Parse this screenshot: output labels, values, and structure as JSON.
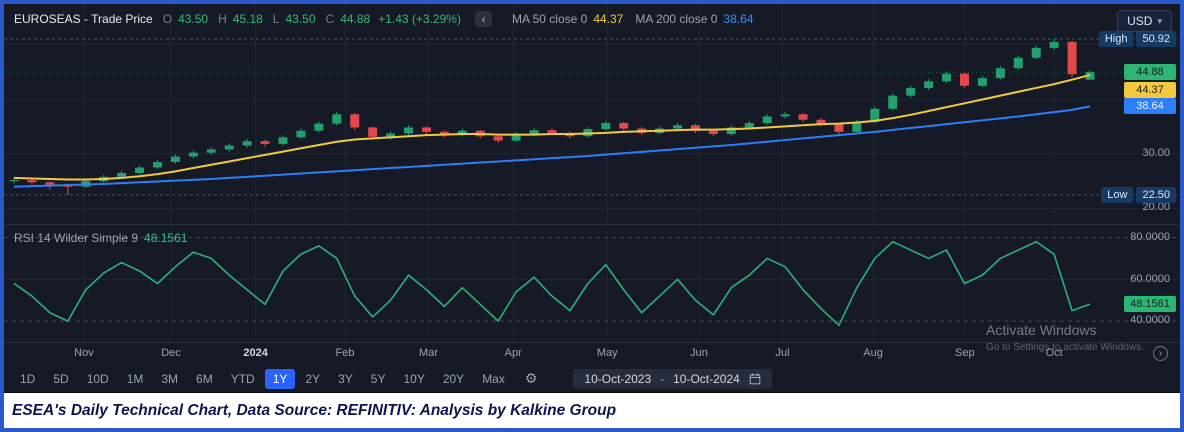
{
  "header": {
    "symbol_title": "EUROSEAS - Trade Price",
    "ohlc": {
      "o_label": "O",
      "o": "43.50",
      "h_label": "H",
      "h": "45.18",
      "l_label": "L",
      "l": "43.50",
      "c_label": "C",
      "c": "44.88",
      "change": "+1.43 (+3.29%)"
    },
    "ma50": {
      "label": "MA 50 close 0",
      "value": "44.37"
    },
    "ma200": {
      "label": "MA 200 close 0",
      "value": "38.64"
    },
    "currency": "USD"
  },
  "icons": {
    "legend_collapse": "‹",
    "caret_down": "▾",
    "gear": "⚙",
    "jump_latest": "›"
  },
  "price_axis": {
    "high_label": "High",
    "high_value": "50.92",
    "last_value": "44.88",
    "ma50_value": "44.37",
    "ma200_value": "38.64",
    "grid_labels": [
      "30.00",
      "20.00"
    ],
    "low_label": "Low",
    "low_value": "22.50"
  },
  "rsi": {
    "legend": "RSI 14 Wilder Simple 9",
    "value": "48.1561",
    "axis_labels": [
      "80.0000",
      "60.0000",
      "40.0000"
    ],
    "badge_value": "48.1561"
  },
  "time_axis": {
    "labels": [
      {
        "text": "Nov",
        "pos": 0.068
      },
      {
        "text": "Dec",
        "pos": 0.142
      },
      {
        "text": "2024",
        "pos": 0.214,
        "year": true
      },
      {
        "text": "Feb",
        "pos": 0.29
      },
      {
        "text": "Mar",
        "pos": 0.361
      },
      {
        "text": "Apr",
        "pos": 0.433
      },
      {
        "text": "May",
        "pos": 0.513
      },
      {
        "text": "Jun",
        "pos": 0.591
      },
      {
        "text": "Jul",
        "pos": 0.662
      },
      {
        "text": "Aug",
        "pos": 0.739
      },
      {
        "text": "Sep",
        "pos": 0.817
      },
      {
        "text": "Oct",
        "pos": 0.893
      }
    ]
  },
  "toolbar": {
    "ranges": [
      "1D",
      "5D",
      "10D",
      "1M",
      "3M",
      "6M",
      "YTD",
      "1Y",
      "2Y",
      "3Y",
      "5Y",
      "10Y",
      "20Y",
      "Max"
    ],
    "active_range": "1Y",
    "date_from": "10-Oct-2023",
    "date_separator": "-",
    "date_to": "10-Oct-2024"
  },
  "watermark": {
    "line1": "Activate Windows",
    "line2": "Go to Settings to activate Windows."
  },
  "caption": "ESEA's Daily Technical Chart, Data Source: REFINITIV: Analysis by Kalkine Group",
  "chart_data": [
    {
      "type": "candlestick",
      "title": "EUROSEAS - Trade Price, 1Y daily (values sampled ~weekly from chart)",
      "x_range": [
        "10-Oct-2023",
        "10-Oct-2024"
      ],
      "ylim": [
        17.2,
        57.3
      ],
      "axis_ticks": [
        {
          "value": 30,
          "label": "30.00"
        },
        {
          "value": 20,
          "label": "20.00"
        }
      ],
      "markers": {
        "high": 50.92,
        "low": 22.5,
        "last": 44.88
      },
      "colors": {
        "up": "#23a06d",
        "down": "#e4484f"
      },
      "ohlc": [
        [
          25.0,
          25.6,
          24.6,
          25.2
        ],
        [
          25.2,
          25.5,
          24.4,
          24.8
        ],
        [
          24.8,
          25.0,
          23.4,
          24.3
        ],
        [
          24.3,
          24.6,
          22.5,
          24.0
        ],
        [
          24.0,
          25.3,
          23.8,
          25.0
        ],
        [
          25.0,
          26.2,
          24.7,
          25.8
        ],
        [
          25.8,
          26.9,
          25.5,
          26.5
        ],
        [
          26.5,
          27.9,
          26.2,
          27.5
        ],
        [
          27.5,
          28.9,
          27.2,
          28.5
        ],
        [
          28.5,
          29.9,
          28.2,
          29.5
        ],
        [
          29.5,
          30.6,
          29.1,
          30.2
        ],
        [
          30.2,
          31.2,
          29.8,
          30.8
        ],
        [
          30.8,
          31.9,
          30.4,
          31.5
        ],
        [
          31.5,
          32.7,
          31.1,
          32.3
        ],
        [
          32.3,
          32.6,
          31.3,
          31.8
        ],
        [
          31.8,
          33.4,
          31.5,
          33.0
        ],
        [
          33.0,
          34.6,
          32.7,
          34.2
        ],
        [
          34.2,
          35.9,
          33.9,
          35.5
        ],
        [
          35.5,
          37.6,
          35.1,
          37.2
        ],
        [
          37.2,
          37.4,
          34.3,
          34.8
        ],
        [
          34.8,
          35.0,
          32.6,
          33.1
        ],
        [
          33.1,
          34.1,
          32.6,
          33.7
        ],
        [
          33.7,
          35.2,
          33.4,
          34.8
        ],
        [
          34.8,
          35.0,
          33.6,
          34.0
        ],
        [
          34.0,
          34.3,
          33.0,
          33.4
        ],
        [
          33.4,
          34.6,
          33.1,
          34.2
        ],
        [
          34.2,
          34.4,
          32.8,
          33.2
        ],
        [
          33.2,
          33.5,
          32.0,
          32.4
        ],
        [
          32.4,
          34.0,
          32.1,
          33.6
        ],
        [
          33.6,
          34.7,
          33.3,
          34.3
        ],
        [
          34.3,
          34.6,
          33.4,
          33.8
        ],
        [
          33.8,
          34.1,
          32.8,
          33.2
        ],
        [
          33.2,
          34.9,
          32.9,
          34.5
        ],
        [
          34.5,
          36.0,
          34.2,
          35.6
        ],
        [
          35.6,
          35.8,
          34.2,
          34.6
        ],
        [
          34.6,
          34.9,
          33.4,
          33.8
        ],
        [
          33.8,
          35.0,
          33.5,
          34.6
        ],
        [
          34.6,
          35.6,
          34.3,
          35.2
        ],
        [
          35.2,
          35.4,
          33.8,
          34.2
        ],
        [
          34.2,
          34.5,
          33.2,
          33.6
        ],
        [
          33.6,
          35.2,
          33.3,
          34.8
        ],
        [
          34.8,
          36.0,
          34.5,
          35.6
        ],
        [
          35.6,
          37.2,
          35.3,
          36.8
        ],
        [
          36.8,
          37.6,
          36.4,
          37.2
        ],
        [
          37.2,
          37.4,
          35.8,
          36.2
        ],
        [
          36.2,
          36.5,
          35.0,
          35.4
        ],
        [
          35.4,
          35.6,
          33.6,
          34.0
        ],
        [
          34.0,
          36.2,
          33.8,
          35.8
        ],
        [
          35.8,
          38.6,
          35.5,
          38.2
        ],
        [
          38.2,
          41.0,
          37.9,
          40.6
        ],
        [
          40.6,
          42.4,
          40.2,
          42.0
        ],
        [
          42.0,
          43.6,
          41.6,
          43.2
        ],
        [
          43.2,
          45.0,
          42.9,
          44.6
        ],
        [
          44.6,
          44.8,
          42.0,
          42.4
        ],
        [
          42.4,
          44.2,
          42.1,
          43.8
        ],
        [
          43.8,
          46.0,
          43.5,
          45.6
        ],
        [
          45.6,
          47.9,
          45.3,
          47.5
        ],
        [
          47.5,
          49.7,
          47.2,
          49.3
        ],
        [
          49.3,
          50.92,
          48.9,
          50.4
        ],
        [
          50.4,
          50.6,
          44.0,
          44.5
        ],
        [
          43.5,
          45.18,
          43.5,
          44.88
        ]
      ],
      "series": [
        {
          "name": "MA 50",
          "color": "#f3c93f",
          "values": [
            25.6,
            25.5,
            25.4,
            25.3,
            25.3,
            25.4,
            25.6,
            25.9,
            26.3,
            26.8,
            27.4,
            28.0,
            28.6,
            29.2,
            29.8,
            30.4,
            31.0,
            31.6,
            32.2,
            32.6,
            32.8,
            33.0,
            33.2,
            33.4,
            33.5,
            33.6,
            33.6,
            33.5,
            33.5,
            33.5,
            33.6,
            33.6,
            33.7,
            33.8,
            34.0,
            34.1,
            34.2,
            34.3,
            34.4,
            34.4,
            34.5,
            34.6,
            34.8,
            35.0,
            35.2,
            35.4,
            35.5,
            35.7,
            36.0,
            36.5,
            37.1,
            37.8,
            38.5,
            39.2,
            39.9,
            40.6,
            41.3,
            42.0,
            42.7,
            43.5,
            44.37
          ]
        },
        {
          "name": "MA 200",
          "color": "#2d7ff9",
          "values": [
            24.0,
            24.1,
            24.2,
            24.3,
            24.4,
            24.5,
            24.65,
            24.8,
            24.95,
            25.1,
            25.25,
            25.4,
            25.6,
            25.8,
            26.0,
            26.2,
            26.4,
            26.6,
            26.8,
            27.0,
            27.2,
            27.4,
            27.6,
            27.8,
            28.0,
            28.2,
            28.4,
            28.6,
            28.8,
            29.0,
            29.2,
            29.4,
            29.6,
            29.85,
            30.1,
            30.35,
            30.6,
            30.85,
            31.1,
            31.35,
            31.6,
            31.9,
            32.2,
            32.5,
            32.8,
            33.1,
            33.4,
            33.7,
            34.0,
            34.35,
            34.7,
            35.05,
            35.4,
            35.75,
            36.1,
            36.45,
            36.8,
            37.2,
            37.6,
            38.0,
            38.64
          ]
        }
      ]
    },
    {
      "type": "line",
      "title": "RSI 14 Wilder Simple 9",
      "ylim": [
        30,
        86
      ],
      "bands": [
        80,
        40
      ],
      "mid_grid": 60,
      "color": "#2fae7e",
      "band_color": "#5a6478",
      "last": 48.1561,
      "values": [
        58,
        52,
        44,
        40,
        55,
        63,
        68,
        64,
        58,
        66,
        73,
        70,
        62,
        55,
        48,
        64,
        72,
        76,
        70,
        52,
        42,
        50,
        62,
        55,
        47,
        56,
        48,
        40,
        54,
        61,
        52,
        45,
        58,
        67,
        55,
        44,
        52,
        60,
        50,
        43,
        56,
        62,
        70,
        66,
        55,
        46,
        38,
        56,
        70,
        78,
        74,
        70,
        74,
        58,
        62,
        70,
        74,
        78,
        72,
        45,
        48.1561
      ]
    }
  ]
}
